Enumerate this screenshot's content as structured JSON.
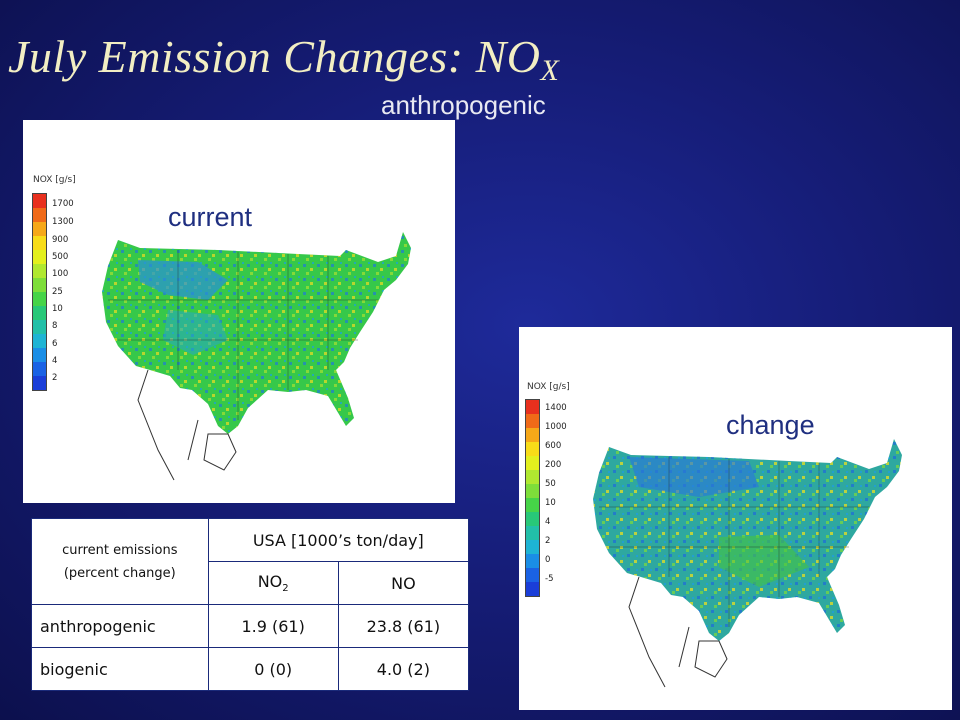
{
  "slide": {
    "title": "July Emission Changes: NO",
    "title_sub": "X",
    "subtitle": "anthropogenic"
  },
  "maps": {
    "current": {
      "label": "current",
      "colorbar_title": "NOX [g/s]",
      "colorbar_ticks": [
        "1700",
        "1300",
        "900",
        "500",
        "100",
        "25",
        "10",
        "8",
        "6",
        "4",
        "2"
      ]
    },
    "change": {
      "label": "change",
      "colorbar_title": "NOX [g/s]",
      "colorbar_ticks": [
        "1400",
        "1000",
        "600",
        "200",
        "50",
        "10",
        "4",
        "2",
        "0",
        "-5"
      ]
    }
  },
  "table": {
    "row_header_line1": "current emissions",
    "row_header_line2": "(percent change)",
    "group_header": "USA [1000’s ton/day]",
    "col_no2": "NO",
    "col_no2_sub": "2",
    "col_no": "NO",
    "rows": [
      {
        "label": "anthropogenic",
        "no2": "1.9 (61)",
        "no": "23.8 (61)"
      },
      {
        "label": "biogenic",
        "no2": "0 (0)",
        "no": "4.0 (2)"
      }
    ]
  },
  "colors": {
    "background": "#161d78",
    "title": "#f2eec3",
    "map_label": "#1f2f80",
    "table_border": "#1a2a7a"
  }
}
